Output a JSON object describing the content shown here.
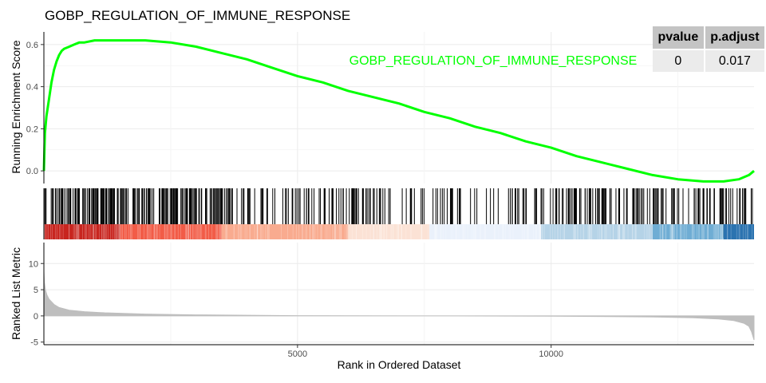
{
  "title": "GOBP_REGULATION_OF_IMMUNE_RESPONSE",
  "stats": {
    "headers": [
      "pvalue",
      "p.adjust"
    ],
    "values": [
      "0",
      "0.017"
    ]
  },
  "colors": {
    "es_line": "#00ff00",
    "hit": "#000000",
    "metric_fill": "#bebebe",
    "gradient": [
      "#c8251f",
      "#f25c47",
      "#f9ab8f",
      "#fbe2d5",
      "#eaf1fb",
      "#b5d3e7",
      "#6fadd4",
      "#2b73b0"
    ]
  },
  "chart_data": {
    "type": "line",
    "title": "GOBP_REGULATION_OF_IMMUNE_RESPONSE",
    "xlabel": "Rank in Ordered Dataset",
    "xlim": [
      0,
      14000
    ],
    "x_ticks": [
      5000,
      10000
    ],
    "panels": [
      {
        "name": "running-es",
        "ylabel": "Running Enrichment Score",
        "ylim": [
          -0.06,
          0.66
        ],
        "y_ticks": [
          0.0,
          0.2,
          0.4,
          0.6
        ],
        "y_tick_labels": [
          "0.0",
          "0.2",
          "0.4",
          "0.6"
        ],
        "series": [
          {
            "label": "GOBP_REGULATION_OF_IMMUNE_RESPONSE",
            "x": [
              0,
              20,
              50,
              100,
              150,
              200,
              250,
              300,
              350,
              400,
              500,
              600,
              700,
              800,
              1000,
              1200,
              1500,
              2000,
              2500,
              3000,
              3500,
              4000,
              4500,
              5000,
              5500,
              6000,
              6500,
              7000,
              7500,
              8000,
              8500,
              9000,
              9500,
              10000,
              10500,
              11000,
              11500,
              12000,
              12500,
              13000,
              13400,
              13700,
              13900,
              14000
            ],
            "y": [
              0.0,
              0.18,
              0.26,
              0.34,
              0.42,
              0.48,
              0.52,
              0.55,
              0.57,
              0.58,
              0.59,
              0.6,
              0.61,
              0.61,
              0.62,
              0.62,
              0.62,
              0.62,
              0.61,
              0.59,
              0.56,
              0.53,
              0.49,
              0.45,
              0.42,
              0.38,
              0.35,
              0.32,
              0.28,
              0.25,
              0.21,
              0.18,
              0.14,
              0.11,
              0.07,
              0.04,
              0.01,
              -0.02,
              -0.04,
              -0.05,
              -0.05,
              -0.04,
              -0.02,
              0.0
            ]
          }
        ]
      },
      {
        "name": "ranked-list-metric",
        "ylabel": "Ranked List Metric",
        "ylim": [
          -5.5,
          14
        ],
        "y_ticks": [
          -5,
          0,
          5,
          10
        ],
        "y_tick_labels": [
          "-5",
          "0",
          "5",
          "10"
        ],
        "series": [
          {
            "x": [
              0,
              10,
              30,
              60,
              100,
              200,
              300,
              500,
              800,
              1200,
              2000,
              3000,
              5000,
              8000,
              10000,
              12000,
              12800,
              13300,
              13600,
              13800,
              13900,
              13950,
              14000
            ],
            "y": [
              8.5,
              6.5,
              5.0,
              4.0,
              3.2,
              2.2,
              1.6,
              1.1,
              0.8,
              0.6,
              0.35,
              0.2,
              0.05,
              0.0,
              -0.05,
              -0.2,
              -0.35,
              -0.6,
              -0.9,
              -1.4,
              -2.0,
              -3.0,
              -4.6
            ]
          }
        ]
      }
    ]
  }
}
